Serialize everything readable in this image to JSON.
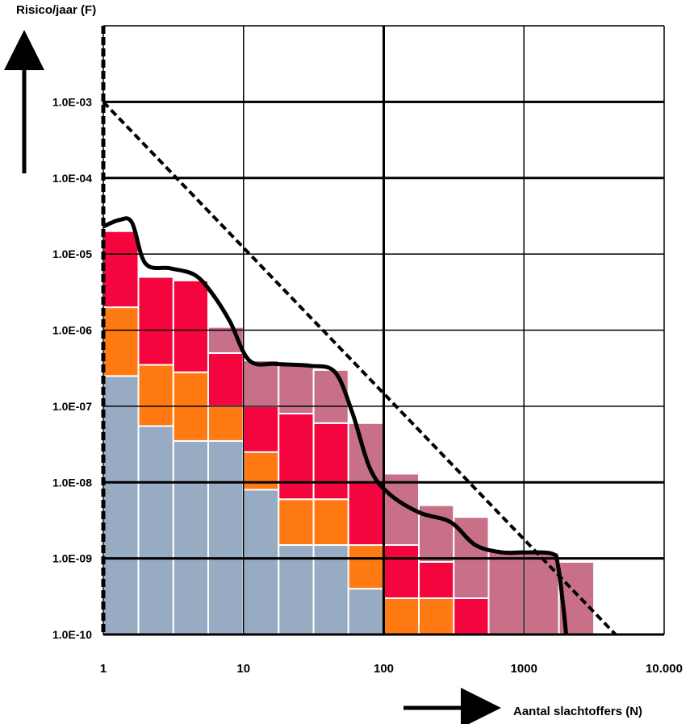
{
  "chart_data": {
    "type": "bar",
    "title": "",
    "ylabel": "Risico/jaar (F)",
    "xlabel": "Aantal slachtoffers (N)",
    "x_scale": "log",
    "y_scale": "log",
    "xlim": [
      1,
      10000
    ],
    "ylim": [
      1e-10,
      0.01
    ],
    "y_ticks": [
      {
        "value": 1e-10,
        "label": "1.0E-10"
      },
      {
        "value": 1e-09,
        "label": "1.0E-09"
      },
      {
        "value": 1e-08,
        "label": "1.0E-08"
      },
      {
        "value": 1e-07,
        "label": "1.0E-07"
      },
      {
        "value": 1e-06,
        "label": "1.0E-06"
      },
      {
        "value": 1e-05,
        "label": "1.0E-05"
      },
      {
        "value": 0.0001,
        "label": "1.0E-04"
      },
      {
        "value": 0.001,
        "label": "1.0E-03"
      }
    ],
    "x_ticks": [
      {
        "value": 1,
        "label": "1"
      },
      {
        "value": 10,
        "label": "10"
      },
      {
        "value": 100,
        "label": "100"
      },
      {
        "value": 1000,
        "label": "1000"
      },
      {
        "value": 10000,
        "label": "10.000"
      }
    ],
    "colors": {
      "blue": "#97abc2",
      "orange": "#ff7a12",
      "red": "#f4053d",
      "mauve": "#c77088",
      "grid": "#000000"
    },
    "bars": [
      {
        "x0": 1.0,
        "x1": 1.78,
        "segments": [
          {
            "color": "blue",
            "top": 2.5e-07
          },
          {
            "color": "orange",
            "top": 2e-06
          },
          {
            "color": "red",
            "top": 2e-05
          }
        ]
      },
      {
        "x0": 1.78,
        "x1": 3.16,
        "segments": [
          {
            "color": "blue",
            "top": 5.5e-08
          },
          {
            "color": "orange",
            "top": 3.5e-07
          },
          {
            "color": "red",
            "top": 5e-06
          }
        ]
      },
      {
        "x0": 3.16,
        "x1": 5.6,
        "segments": [
          {
            "color": "blue",
            "top": 3.5e-08
          },
          {
            "color": "orange",
            "top": 2.8e-07
          },
          {
            "color": "red",
            "top": 4.5e-06
          }
        ]
      },
      {
        "x0": 5.6,
        "x1": 10.0,
        "segments": [
          {
            "color": "blue",
            "top": 3.5e-08
          },
          {
            "color": "orange",
            "top": 1e-07
          },
          {
            "color": "red",
            "top": 5e-07
          },
          {
            "color": "mauve",
            "top": 1.1e-06
          }
        ]
      },
      {
        "x0": 10.0,
        "x1": 17.8,
        "segments": [
          {
            "color": "blue",
            "top": 8e-09
          },
          {
            "color": "orange",
            "top": 2.5e-08
          },
          {
            "color": "red",
            "top": 1e-07
          },
          {
            "color": "mauve",
            "top": 4e-07
          }
        ]
      },
      {
        "x0": 17.8,
        "x1": 31.6,
        "segments": [
          {
            "color": "blue",
            "top": 1.5e-09
          },
          {
            "color": "orange",
            "top": 6e-09
          },
          {
            "color": "red",
            "top": 8e-08
          },
          {
            "color": "mauve",
            "top": 3.5e-07
          }
        ]
      },
      {
        "x0": 31.6,
        "x1": 56.0,
        "segments": [
          {
            "color": "blue",
            "top": 1.5e-09
          },
          {
            "color": "orange",
            "top": 6e-09
          },
          {
            "color": "red",
            "top": 6e-08
          },
          {
            "color": "mauve",
            "top": 3e-07
          }
        ]
      },
      {
        "x0": 56.0,
        "x1": 100.0,
        "segments": [
          {
            "color": "blue",
            "top": 4e-10
          },
          {
            "color": "orange",
            "top": 1.5e-09
          },
          {
            "color": "red",
            "top": 1e-08
          },
          {
            "color": "mauve",
            "top": 6e-08
          }
        ]
      },
      {
        "x0": 100.0,
        "x1": 178.0,
        "segments": [
          {
            "color": "orange",
            "top": 3e-10
          },
          {
            "color": "red",
            "top": 1.5e-09
          },
          {
            "color": "mauve",
            "top": 1.3e-08
          }
        ]
      },
      {
        "x0": 178.0,
        "x1": 316.0,
        "segments": [
          {
            "color": "orange",
            "top": 3e-10
          },
          {
            "color": "red",
            "top": 9e-10
          },
          {
            "color": "mauve",
            "top": 5e-09
          }
        ]
      },
      {
        "x0": 316.0,
        "x1": 560.0,
        "segments": [
          {
            "color": "red",
            "top": 3e-10
          },
          {
            "color": "mauve",
            "top": 3.5e-09
          }
        ]
      },
      {
        "x0": 560.0,
        "x1": 1000.0,
        "segments": [
          {
            "color": "mauve",
            "top": 1.3e-09
          }
        ]
      },
      {
        "x0": 1000.0,
        "x1": 1778.0,
        "segments": [
          {
            "color": "mauve",
            "top": 1.2e-09
          }
        ]
      },
      {
        "x0": 1778.0,
        "x1": 3162.0,
        "segments": [
          {
            "color": "mauve",
            "top": 9e-10
          }
        ]
      }
    ],
    "fn_curve": {
      "name": "",
      "points": [
        [
          1.0,
          2.3e-05
        ],
        [
          1.3,
          2.8e-05
        ],
        [
          1.6,
          2.6e-05
        ],
        [
          2.0,
          7.5e-06
        ],
        [
          3.0,
          6.5e-06
        ],
        [
          4.5,
          5.3e-06
        ],
        [
          6.0,
          3e-06
        ],
        [
          8.0,
          1.3e-06
        ],
        [
          11.0,
          4e-07
        ],
        [
          17.0,
          3.6e-07
        ],
        [
          30.0,
          3.4e-07
        ],
        [
          45.0,
          2.8e-07
        ],
        [
          60.0,
          8e-08
        ],
        [
          80.0,
          1.5e-08
        ],
        [
          110.0,
          7e-09
        ],
        [
          180.0,
          4e-09
        ],
        [
          300.0,
          3e-09
        ],
        [
          450.0,
          1.5e-09
        ],
        [
          700.0,
          1.2e-09
        ],
        [
          1000.0,
          1.2e-09
        ],
        [
          1600.0,
          1.15e-09
        ],
        [
          1750.0,
          8e-10
        ],
        [
          1900.0,
          2.5e-10
        ],
        [
          2000.0,
          1e-10
        ]
      ]
    },
    "norm_line": {
      "name": "",
      "points": [
        [
          1.0,
          0.001
        ],
        [
          4500.0,
          1e-10
        ]
      ]
    },
    "grid": "on",
    "legend": "none"
  }
}
